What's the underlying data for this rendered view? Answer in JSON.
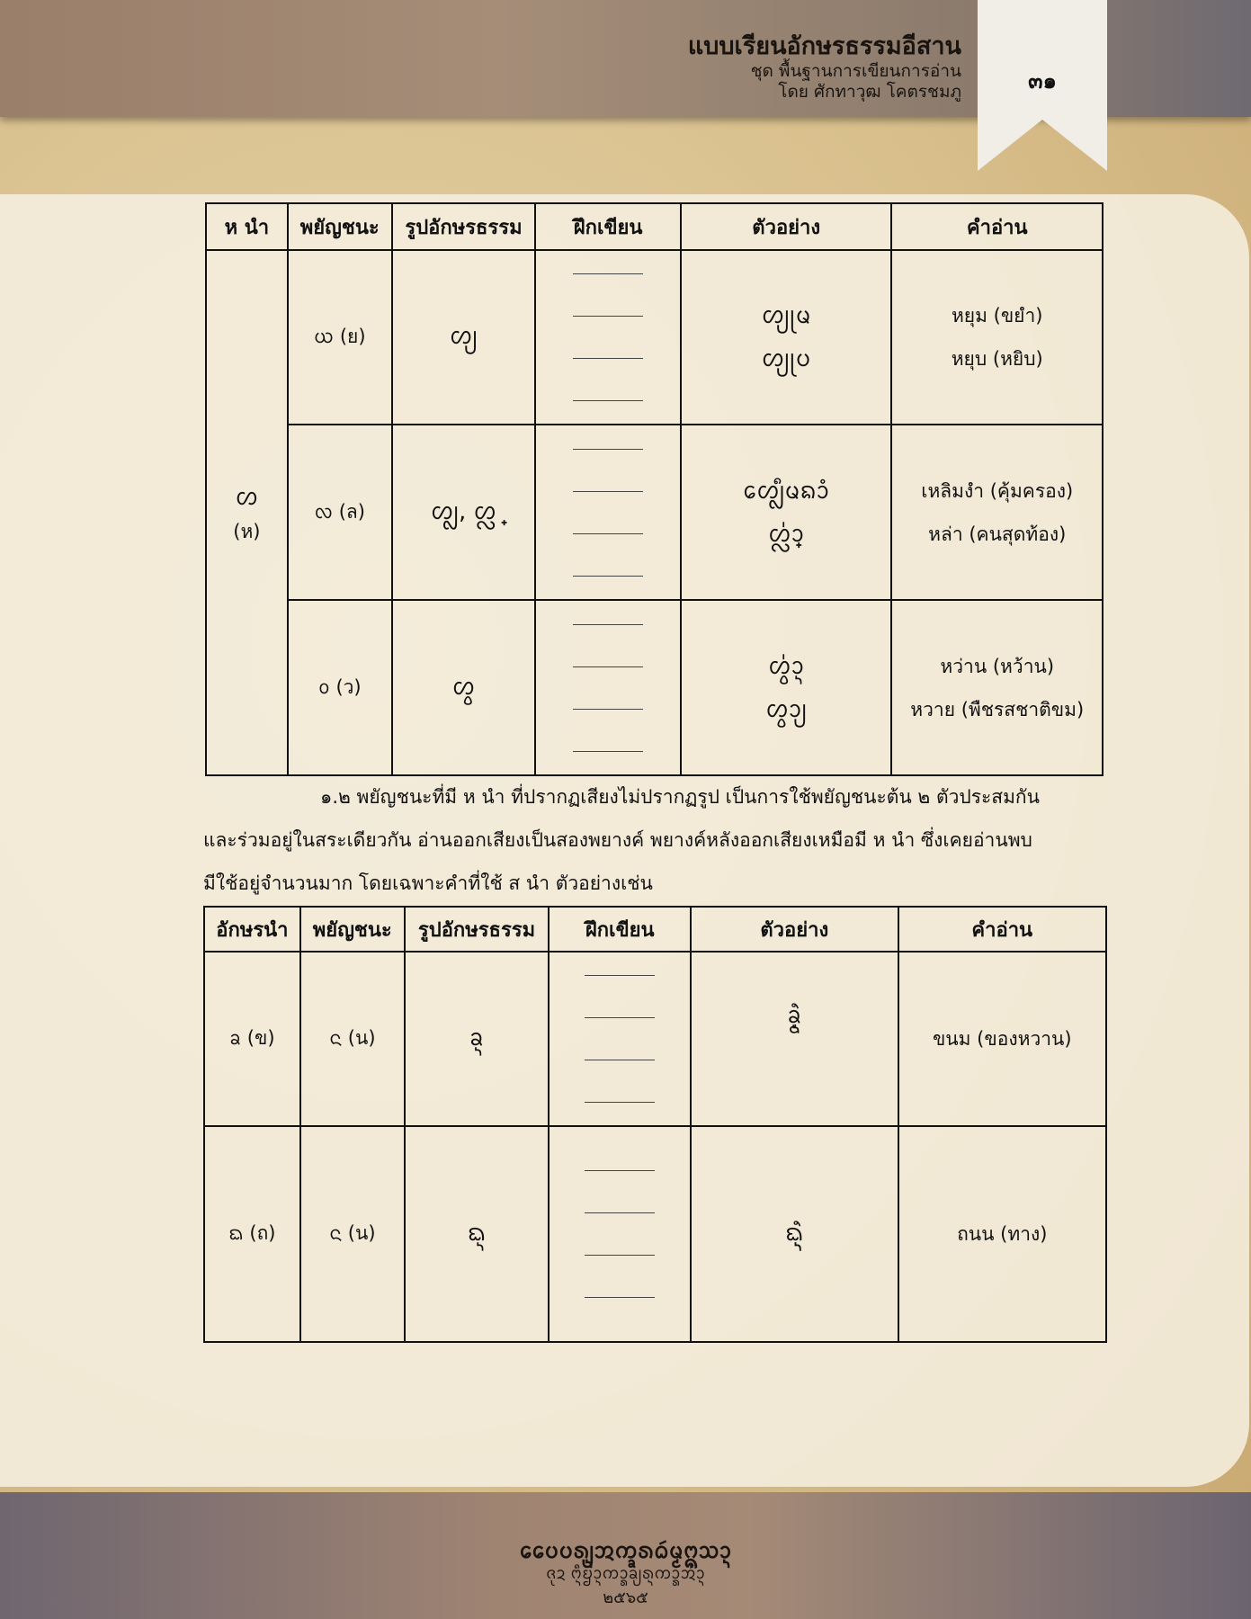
{
  "header": {
    "title": "แบบเรียนอักษรธรรมอีสาน",
    "subtitle": "ชุด พื้นฐานการเขียนการอ่าน",
    "author": "โดย ศักทาวุฒ โคตรชมภู",
    "page_number": "๓๑"
  },
  "table1": {
    "headers": [
      "ห นำ",
      "พยัญชนะ",
      "รูปอักษรธรรม",
      "ฝึกเขียน",
      "ตัวอย่าง",
      "คำอ่าน"
    ],
    "leader": {
      "script": "ᩉ",
      "thai": "(ห)"
    },
    "rows": [
      {
        "consonant": "ᨿ (ย)",
        "form": "ᩉ᩠ᨿ",
        "examples": [
          "ᩉ᩠ᨿᩩᨾ",
          "ᩉ᩠ᨿᩩᨷ"
        ],
        "readings": [
          "หยุม (ขยำ)",
          "หยุบ (หยิบ)"
        ]
      },
      {
        "consonant": "ᩃ (ล)",
        "form": "ᩉ᩠ᩃ, ᩉ᩠ᩖ",
        "examples": [
          "ᩮᩉ᩠ᩃᩥᨾᨦᩣᩴ",
          "ᩉ᩠ᩖ᩵ᩣ"
        ],
        "readings": [
          "เหลิมงำ (คุ้มครอง)",
          "หล่า (คนสุดท้อง)"
        ]
      },
      {
        "consonant": "ᩅ (ว)",
        "form": "ᩉ᩠ᩅ",
        "examples": [
          "ᩉ᩠ᩅ᩵ᩣ᩠ᨶ",
          "ᩉ᩠ᩅᩣ᩠ᨿ"
        ],
        "readings": [
          "หว่าน (หว้าน)",
          "หวาย (พืชรสชาติขม)"
        ]
      }
    ]
  },
  "paragraph": {
    "lines": [
      "๑.๒ พยัญชนะที่มี ห นำ ที่ปรากฏเสียงไม่ปรากฏรูป เป็นการใช้พยัญชนะต้น ๒ ตัวประสมกัน",
      "และร่วมอยู่ในสระเดียวกัน อ่านออกเสียงเป็นสองพยางค์ พยางค์หลังออกเสียงเหมือมี ห นำ ซึ่งเคยอ่านพบ",
      "มีใช้อยู่จำนวนมาก โดยเฉพาะคำที่ใช้ ส นำ ตัวอย่างเช่น"
    ]
  },
  "table2": {
    "headers": [
      "อักษรนำ",
      "พยัญชนะ",
      "รูปอักษรธรรม",
      "ฝึกเขียน",
      "ตัวอย่าง",
      "คำอ่าน"
    ],
    "rows": [
      {
        "lead": "ᨡ (ข)",
        "consonant": "ᨶ (น)",
        "form": "ᨡ᩠ᨶ",
        "example": "ᨡ᩠ᨶᩫ᩠ᨾ",
        "reading": "ขนม (ของหวาน)"
      },
      {
        "lead": "ᨳ (ถ)",
        "consonant": "ᨶ (น)",
        "form": "ᨳ᩠ᨶ",
        "example": "ᨳ᩠ᨶᩫ᩠ᨶ",
        "reading": "ถนน (ทาง)"
      }
    ]
  },
  "footer": {
    "title": "ᩯᨷᨷᩁ᩠ᨿ᩠ᨶᩋᨠ᩠ᨡᩁᨵᩢᨾ᩠ᨾᩍᩈᩣ᩠ᨶ",
    "subtitle": "ᨩᩩᨯ ᨻᩧ᩠ᨶᨮᩣ᩠ᨶᨠᩣ᩠ᩁᨡ᩠ᨿᩁ᩠ᨶᨠᩣ᩠ᩁᩋ᩵ᩣ᩠ᨶ",
    "year": "๒๕๖๕"
  }
}
